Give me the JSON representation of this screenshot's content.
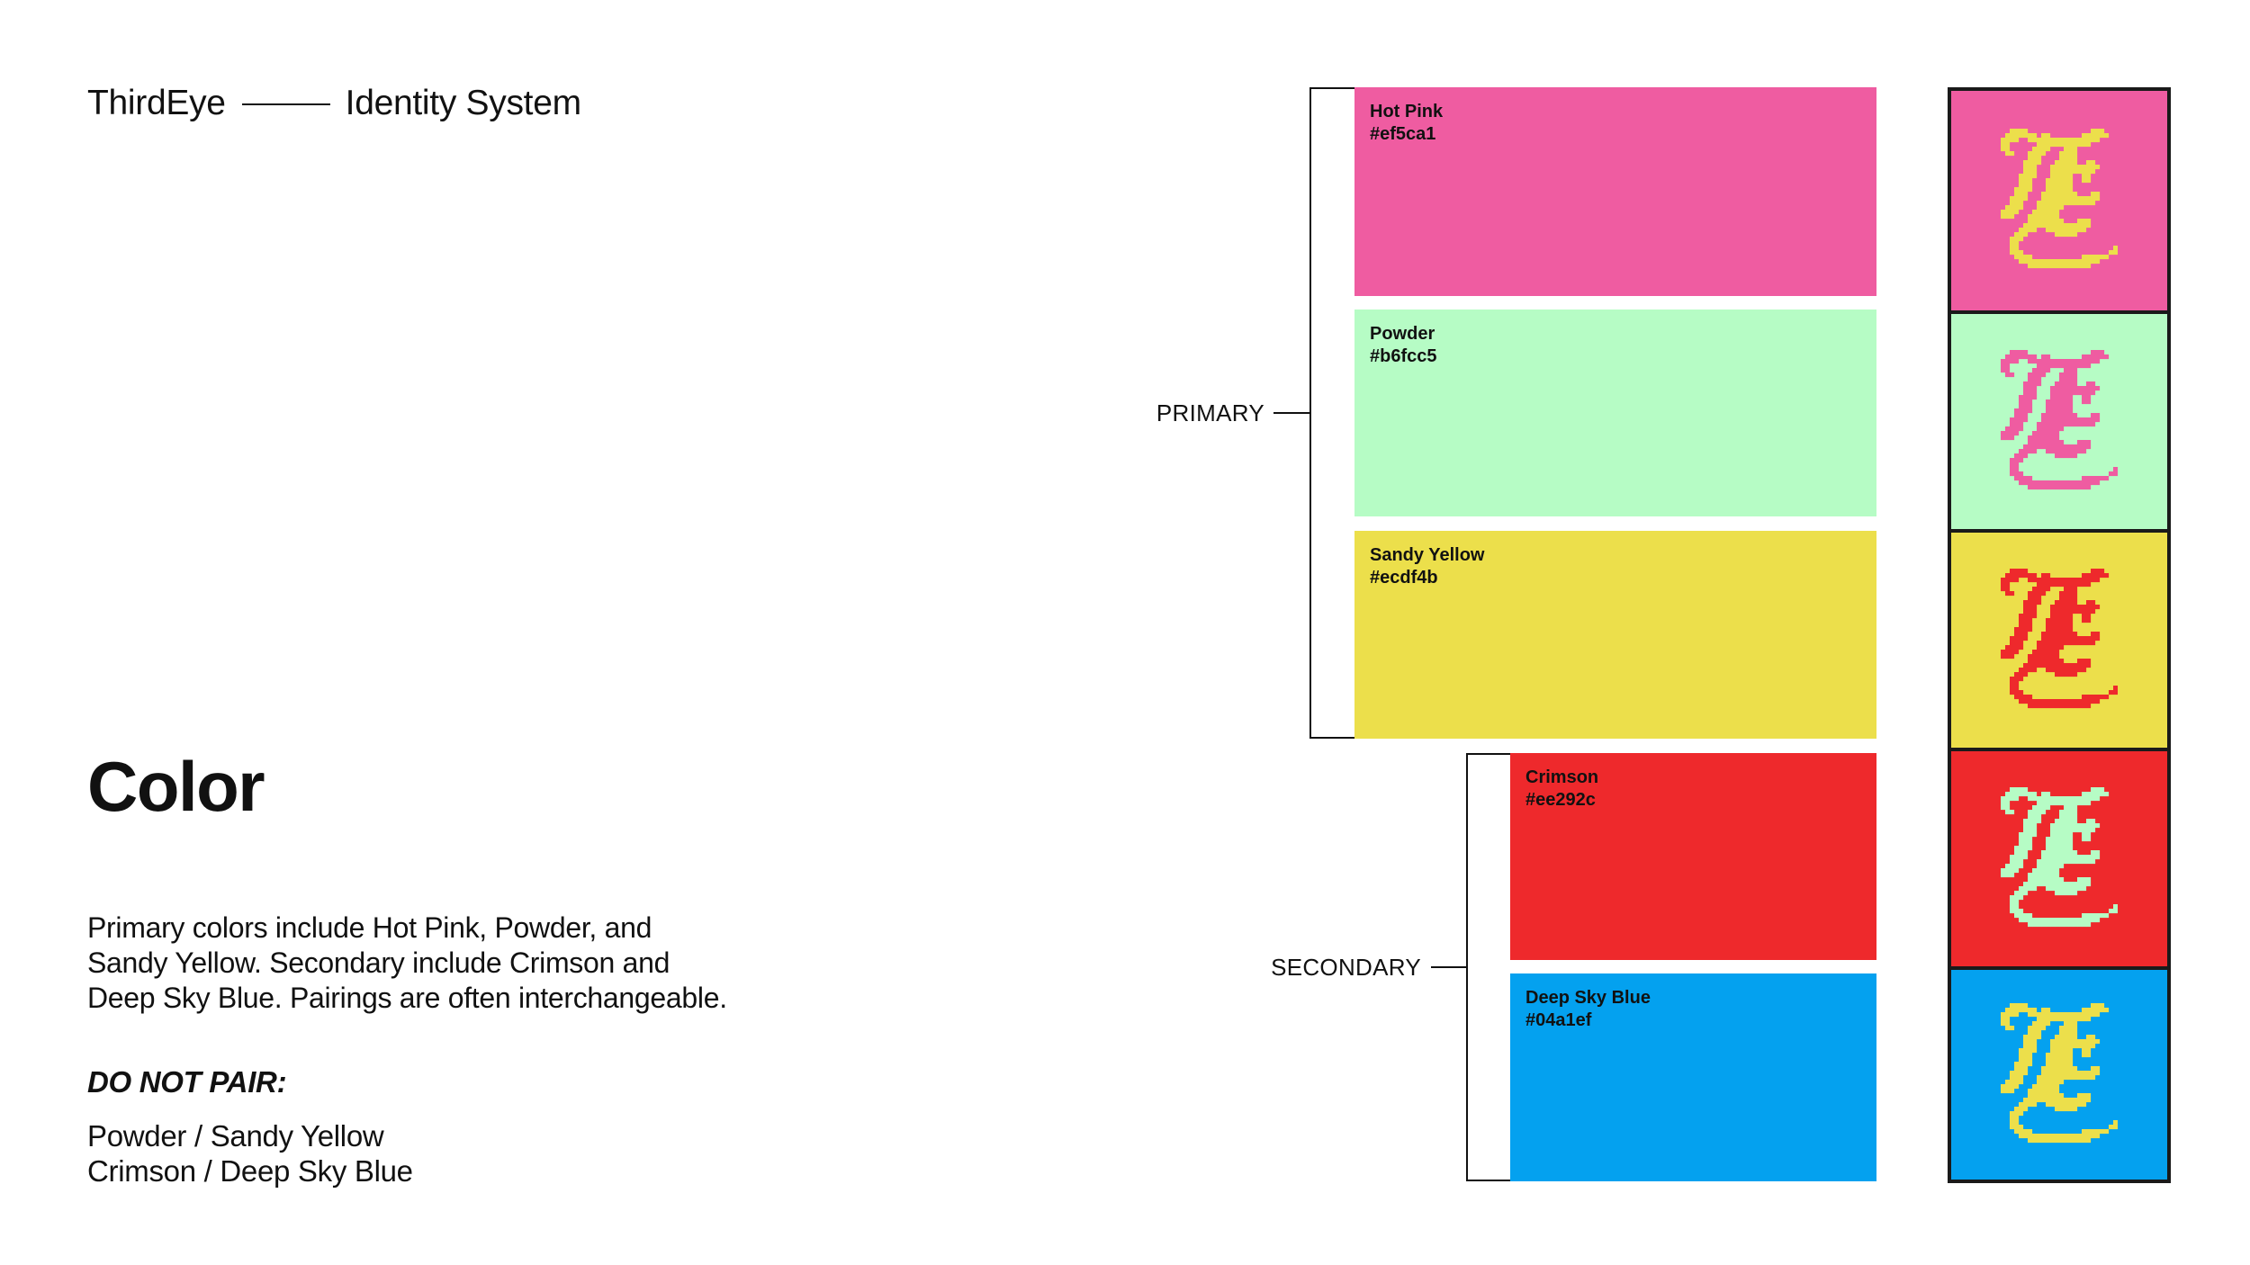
{
  "header": {
    "brand": "ThirdEye",
    "subtitle": "Identity System"
  },
  "section": {
    "title": "Color",
    "description_lines": [
      "Primary colors include Hot Pink, Powder, and",
      "Sandy Yellow. Secondary include Crimson and",
      "Deep Sky Blue. Pairings are often interchangeable."
    ],
    "do_not_pair_heading": "DO NOT PAIR:",
    "do_not_pair": [
      "Powder / Sandy Yellow",
      "Crimson / Deep Sky Blue"
    ]
  },
  "groups": {
    "primary_label": "PRIMARY",
    "secondary_label": "SECONDARY"
  },
  "swatches": [
    {
      "name": "Hot Pink",
      "hex": "#ef5ca1",
      "group": "primary"
    },
    {
      "name": "Powder",
      "hex": "#b6fcc5",
      "group": "primary"
    },
    {
      "name": "Sandy Yellow",
      "hex": "#ecdf4b",
      "group": "primary"
    },
    {
      "name": "Crimson",
      "hex": "#ee292c",
      "group": "secondary"
    },
    {
      "name": "Deep Sky Blue",
      "hex": "#04a1ef",
      "group": "secondary"
    }
  ],
  "logo_tiles": [
    {
      "background": "#ef5ca1",
      "mark_color": "#ecdf4b",
      "icon": "blackletter-e-logo-icon"
    },
    {
      "background": "#b6fcc5",
      "mark_color": "#ef5ca1",
      "icon": "blackletter-e-logo-icon"
    },
    {
      "background": "#ecdf4b",
      "mark_color": "#ee292c",
      "icon": "blackletter-e-logo-icon"
    },
    {
      "background": "#ee292c",
      "mark_color": "#b6fcc5",
      "icon": "blackletter-e-logo-icon"
    },
    {
      "background": "#04a1ef",
      "mark_color": "#ecdf4b",
      "icon": "blackletter-e-logo-icon"
    }
  ]
}
